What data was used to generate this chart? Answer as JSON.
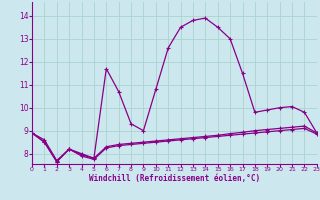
{
  "xlabel": "Windchill (Refroidissement éolien,°C)",
  "background_color": "#cce8ee",
  "grid_color": "#aad4cc",
  "line_color": "#880088",
  "x_ticks": [
    0,
    1,
    2,
    3,
    4,
    5,
    6,
    7,
    8,
    9,
    10,
    11,
    12,
    13,
    14,
    15,
    16,
    17,
    18,
    19,
    20,
    21,
    22,
    23
  ],
  "y_ticks": [
    8,
    9,
    10,
    11,
    12,
    13,
    14
  ],
  "ylim": [
    7.55,
    14.6
  ],
  "xlim": [
    0,
    23
  ],
  "series1_x": [
    0,
    1,
    2,
    3,
    4,
    5,
    6,
    7,
    8,
    9,
    10,
    11,
    12,
    13,
    14,
    15,
    16,
    17,
    18,
    19,
    20,
    21,
    22,
    23
  ],
  "series1_y": [
    8.9,
    8.6,
    7.7,
    8.2,
    8.0,
    7.8,
    11.7,
    10.7,
    9.3,
    9.0,
    10.8,
    12.6,
    13.5,
    13.8,
    13.9,
    13.5,
    13.0,
    11.5,
    9.8,
    9.9,
    10.0,
    10.05,
    9.8,
    8.9
  ],
  "series2_x": [
    0,
    1,
    2,
    3,
    4,
    5,
    6,
    7,
    8,
    9,
    10,
    11,
    12,
    13,
    14,
    15,
    16,
    17,
    18,
    19,
    20,
    21,
    22,
    23
  ],
  "series2_y": [
    8.9,
    8.5,
    7.65,
    8.2,
    7.9,
    7.75,
    8.25,
    8.35,
    8.4,
    8.45,
    8.5,
    8.55,
    8.6,
    8.65,
    8.7,
    8.75,
    8.8,
    8.85,
    8.9,
    8.95,
    9.0,
    9.05,
    9.1,
    8.85
  ],
  "series3_x": [
    0,
    1,
    2,
    3,
    4,
    5,
    6,
    7,
    8,
    9,
    10,
    11,
    12,
    13,
    14,
    15,
    16,
    17,
    18,
    19,
    20,
    21,
    22,
    23
  ],
  "series3_y": [
    8.9,
    8.5,
    7.65,
    8.2,
    7.95,
    7.8,
    8.3,
    8.4,
    8.45,
    8.5,
    8.55,
    8.6,
    8.65,
    8.7,
    8.75,
    8.8,
    8.87,
    8.93,
    9.0,
    9.05,
    9.1,
    9.15,
    9.2,
    8.9
  ]
}
